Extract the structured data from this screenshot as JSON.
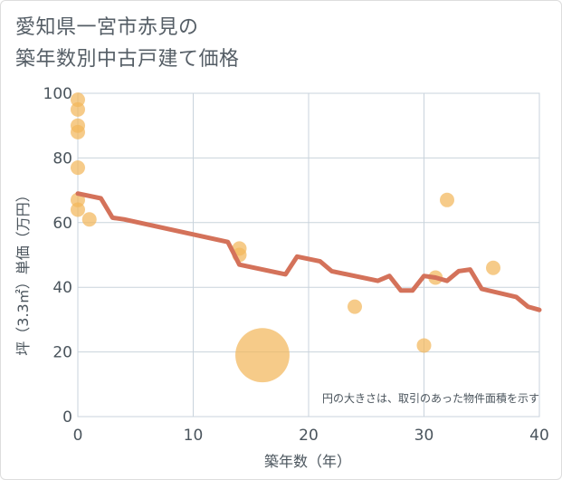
{
  "chart_data": {
    "type": "scatter",
    "title_lines": [
      "愛知県一宮市赤見の",
      "築年数別中古戸建て価格"
    ],
    "xlabel": "築年数（年）",
    "ylabel": "坪（3.3㎡）単価（万円）",
    "xlim": [
      0,
      40
    ],
    "ylim": [
      0,
      100
    ],
    "x_ticks": [
      0,
      10,
      20,
      30,
      40
    ],
    "y_ticks": [
      0,
      20,
      40,
      60,
      80,
      100
    ],
    "grid": true,
    "note": "円の大きさは、取引のあった物件面積を示す",
    "colors": {
      "bubble": "#f2b75c",
      "line": "#d4725a",
      "grid": "#c9d3dc",
      "frame": "#c9d3dc"
    },
    "bubbles": [
      {
        "x": 0,
        "y": 98,
        "size": 1
      },
      {
        "x": 0,
        "y": 95,
        "size": 1
      },
      {
        "x": 0,
        "y": 90,
        "size": 1
      },
      {
        "x": 0,
        "y": 88,
        "size": 1
      },
      {
        "x": 0,
        "y": 77,
        "size": 1
      },
      {
        "x": 0,
        "y": 67,
        "size": 1
      },
      {
        "x": 0,
        "y": 64,
        "size": 1
      },
      {
        "x": 1,
        "y": 61,
        "size": 1
      },
      {
        "x": 14,
        "y": 52,
        "size": 1
      },
      {
        "x": 14,
        "y": 50,
        "size": 1
      },
      {
        "x": 16,
        "y": 19,
        "size": 14
      },
      {
        "x": 24,
        "y": 34,
        "size": 1
      },
      {
        "x": 30,
        "y": 22,
        "size": 1
      },
      {
        "x": 31,
        "y": 43,
        "size": 1
      },
      {
        "x": 32,
        "y": 67,
        "size": 1
      },
      {
        "x": 36,
        "y": 46,
        "size": 1
      }
    ],
    "trend": [
      {
        "x": 0,
        "y": 69
      },
      {
        "x": 2,
        "y": 67.5
      },
      {
        "x": 3,
        "y": 61.5
      },
      {
        "x": 4,
        "y": 61
      },
      {
        "x": 13,
        "y": 54
      },
      {
        "x": 14,
        "y": 47
      },
      {
        "x": 18,
        "y": 44
      },
      {
        "x": 19,
        "y": 49.5
      },
      {
        "x": 21,
        "y": 48
      },
      {
        "x": 22,
        "y": 45
      },
      {
        "x": 26,
        "y": 42
      },
      {
        "x": 27,
        "y": 43.5
      },
      {
        "x": 28,
        "y": 39
      },
      {
        "x": 29,
        "y": 39
      },
      {
        "x": 30,
        "y": 43.5
      },
      {
        "x": 31,
        "y": 43
      },
      {
        "x": 32,
        "y": 42
      },
      {
        "x": 33,
        "y": 45
      },
      {
        "x": 34,
        "y": 45.5
      },
      {
        "x": 35,
        "y": 39.5
      },
      {
        "x": 38,
        "y": 37
      },
      {
        "x": 39,
        "y": 34
      },
      {
        "x": 40,
        "y": 33
      }
    ]
  }
}
